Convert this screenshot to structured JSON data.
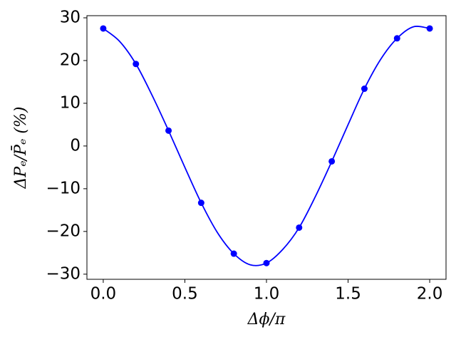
{
  "chart_data": {
    "type": "scatter",
    "xlabel": "Δϕ/π",
    "ylabel": "ΔPₑ/P̄ₑ (%)",
    "points": {
      "color": "#0000ff",
      "x": [
        0,
        0.2,
        0.4,
        0.6,
        0.8,
        1.0,
        1.2,
        1.4,
        1.6,
        1.8,
        2.0
      ],
      "y": [
        27.5,
        19.2,
        3.6,
        -13.3,
        -25.2,
        -27.4,
        -19.1,
        -3.6,
        13.4,
        25.2,
        27.5
      ]
    },
    "curve": {
      "color": "#0000ff",
      "x": [
        0,
        0.1,
        0.2,
        0.3,
        0.4,
        0.5,
        0.6,
        0.7,
        0.8,
        0.9,
        1.0,
        1.1,
        1.2,
        1.3,
        1.4,
        1.5,
        1.6,
        1.7,
        1.8,
        1.9,
        2.0
      ],
      "y": [
        27.5,
        24.5,
        19.2,
        11.8,
        3.6,
        -5,
        -13.3,
        -20.3,
        -25.2,
        -27.8,
        -27.4,
        -24.2,
        -19.1,
        -11.8,
        -3.6,
        5,
        13.4,
        20.3,
        25.2,
        27.9,
        27.5
      ]
    },
    "xlim": [
      -0.1,
      2.1
    ],
    "ylim": [
      -31.2,
      30.5
    ],
    "xticks": [
      {
        "value": 0,
        "label": "0.0"
      },
      0.5,
      {
        "value": 1,
        "label": "1.0"
      },
      1.5,
      {
        "value": 2,
        "label": "2.0"
      }
    ],
    "yticks": [
      {
        "value": -30,
        "label": "−30"
      },
      {
        "value": -20,
        "label": "−20"
      },
      {
        "value": -10,
        "label": "−10"
      },
      0,
      10,
      20,
      30
    ]
  }
}
